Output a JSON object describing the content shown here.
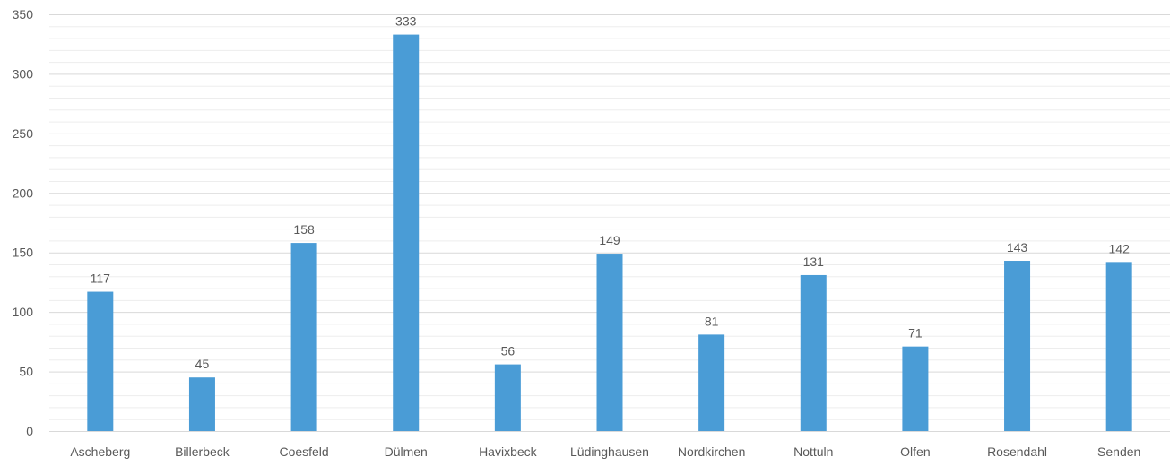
{
  "chart_data": {
    "type": "bar",
    "categories": [
      "Ascheberg",
      "Billerbeck",
      "Coesfeld",
      "Dülmen",
      "Havixbeck",
      "Lüdinghausen",
      "Nordkirchen",
      "Nottuln",
      "Olfen",
      "Rosendahl",
      "Senden"
    ],
    "values": [
      117,
      45,
      158,
      333,
      56,
      149,
      81,
      131,
      71,
      143,
      142
    ],
    "ylim": [
      0,
      350
    ],
    "y_ticks": [
      "0",
      "50",
      "100",
      "150",
      "200",
      "250",
      "300",
      "350"
    ],
    "y_tick_step": 50,
    "minor_grid_step": 10,
    "grid": true,
    "data_labels": true,
    "bar_color": "#4a9cd6",
    "text_color": "#595959",
    "major_grid_color": "#d9d9d9",
    "minor_grid_color": "#ededed"
  }
}
